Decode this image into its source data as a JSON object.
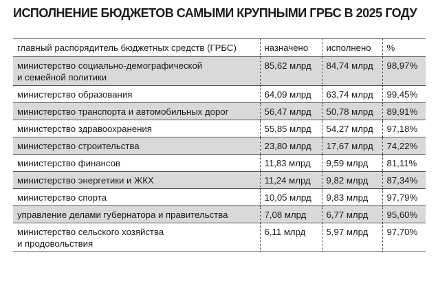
{
  "title": "ИСПОЛНЕНИЕ БЮДЖЕТОВ САМЫМИ КРУПНЫМИ ГРБС В 2025 ГОДУ",
  "colors": {
    "shaded_row": "#d9d9d9",
    "text": "#1a1a1a"
  },
  "table": {
    "headers": [
      "главный распорядитель бюджетных средств (ГРБС)",
      "назначено",
      "исполнено",
      "%"
    ],
    "rows": [
      {
        "name": "министерство социально-демографической",
        "name2": "и семейной политики",
        "planned": "85,62 млрд",
        "executed": "84,74 млрд",
        "pct": "98,97%"
      },
      {
        "name": "министерство образования",
        "planned": "64,09 млрд",
        "executed": "63,74 млрд",
        "pct": "99,45%"
      },
      {
        "name": "министерство транспорта и автомобильных дорог",
        "planned": "56,47 млрд",
        "executed": "50,78 млрд",
        "pct": "89,91%"
      },
      {
        "name": "министерство здравоохранения",
        "planned": "55,85 млрд",
        "executed": "54,27 млрд",
        "pct": "97,18%"
      },
      {
        "name": "министерство строительства",
        "planned": "23,80 млрд",
        "executed": "17,67 млрд",
        "pct": "74,22%"
      },
      {
        "name": "министерство финансов",
        "planned": "11,83 млрд",
        "executed": "9,59 млрд",
        "pct": "81,11%"
      },
      {
        "name": "министерство энергетики и ЖКХ",
        "planned": "11,24 млрд",
        "executed": "9,82 млрд",
        "pct": "87,34%"
      },
      {
        "name": "министерство спорта",
        "planned": "10,05 млрд",
        "executed": "9,83 млрд",
        "pct": "97,79%"
      },
      {
        "name": "управление делами губернатора и правительства",
        "planned": "7,08 млрд",
        "executed": "6,77 млрд",
        "pct": "95,60%"
      },
      {
        "name": "министерство сельского хозяйства",
        "name2": "и продовольствия",
        "planned": "6,11 млрд",
        "executed": "5,97 млрд",
        "pct": "97,70%"
      }
    ]
  }
}
